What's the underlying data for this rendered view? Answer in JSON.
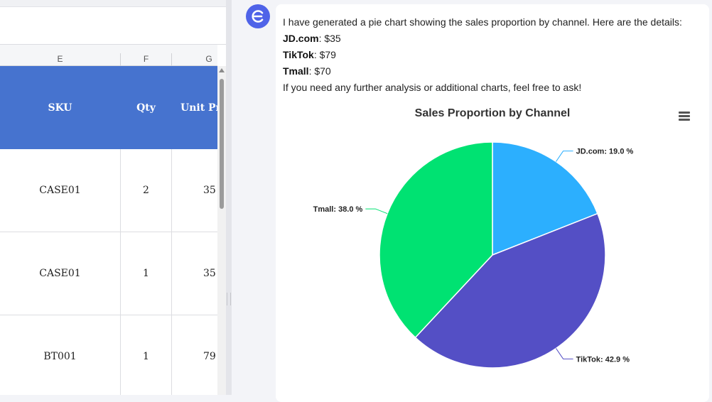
{
  "sheet": {
    "columns": [
      "E",
      "F",
      "G"
    ],
    "header": {
      "sku": "SKU",
      "qty": "Qty",
      "unit_price": "Unit Pr"
    },
    "rows": [
      {
        "sku": "CASE01",
        "qty": "2",
        "unit_price": "35"
      },
      {
        "sku": "CASE01",
        "qty": "1",
        "unit_price": "35"
      },
      {
        "sku": "BT001",
        "qty": "1",
        "unit_price": "79"
      }
    ],
    "header_color": "#4673cf"
  },
  "chat": {
    "intro": "I have generated a pie chart showing the sales proportion by channel. Here are the details:",
    "details": [
      {
        "name": "JD.com",
        "value": ": $35"
      },
      {
        "name": "TikTok",
        "value": ": $79"
      },
      {
        "name": "Tmall",
        "value": ": $70"
      }
    ],
    "outro": "If you need any further analysis or additional charts, feel free to ask!",
    "avatar_icon": "euro-letter-icon",
    "avatar_color": "#4f63e8"
  },
  "chart_data": {
    "type": "pie",
    "title": "Sales Proportion by Channel",
    "slices": [
      {
        "name": "JD.com",
        "value": 35,
        "percent": 19.0,
        "label": "JD.com: 19.0 %",
        "color": "#2caffe"
      },
      {
        "name": "TikTok",
        "value": 79,
        "percent": 42.9,
        "label": "TikTok: 42.9 %",
        "color": "#544fc5"
      },
      {
        "name": "Tmall",
        "value": 70,
        "percent": 38.0,
        "label": "Tmall: 38.0 %",
        "color": "#00e272"
      }
    ],
    "start_angle_deg": 0,
    "menu_icon": "hamburger-menu-icon"
  }
}
